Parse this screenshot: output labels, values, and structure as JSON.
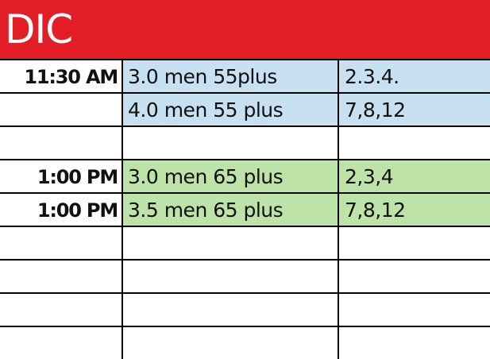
{
  "header": {
    "title": "DIC",
    "color": "#E31E26"
  },
  "rows": [
    {
      "time": "11:30 AM",
      "division": "3.0 men 55plus",
      "courts": "2.3.4.",
      "color": "#C7E1F2"
    },
    {
      "time": "",
      "division": "4.0 men 55 plus",
      "courts": "7,8,12",
      "color": "#C7E1F2"
    },
    {
      "time": "",
      "division": "",
      "courts": "",
      "color": "#FFFFFF"
    },
    {
      "time": "1:00 PM",
      "division": "3.0 men 65 plus",
      "courts": "2,3,4",
      "color": "#BEE3A9"
    },
    {
      "time": "1:00 PM",
      "division": "3.5 men 65 plus",
      "courts": "7,8,12",
      "color": "#BEE3A9"
    },
    {
      "time": "",
      "division": "",
      "courts": "",
      "color": "#FFFFFF"
    },
    {
      "time": "",
      "division": "",
      "courts": "",
      "color": "#FFFFFF"
    },
    {
      "time": "",
      "division": "",
      "courts": "",
      "color": "#FFFFFF"
    },
    {
      "time": "",
      "division": "",
      "courts": "",
      "color": "#FFFFFF"
    }
  ]
}
